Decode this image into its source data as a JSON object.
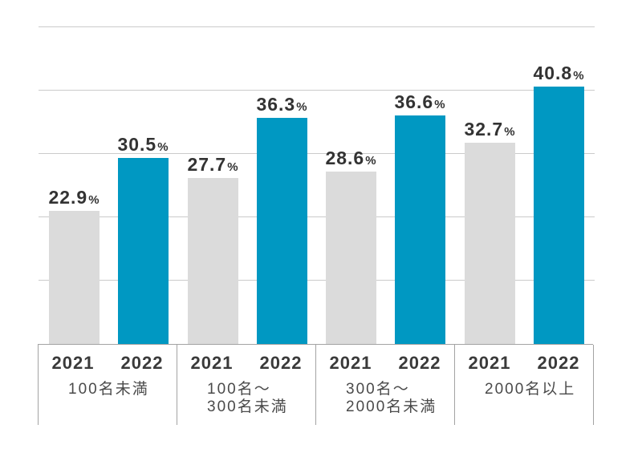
{
  "chart_data": {
    "type": "bar",
    "title": "",
    "categories": [
      "100名未満",
      "100名～300名未満",
      "300名～2000名未満",
      "2000名以上"
    ],
    "series": [
      {
        "name": "2021",
        "values": [
          22.9,
          27.7,
          28.6,
          32.7
        ],
        "color": "#dbdbdb"
      },
      {
        "name": "2022",
        "values": [
          30.5,
          36.3,
          36.6,
          40.8
        ],
        "color": "#0098c2"
      }
    ],
    "unit": "%",
    "value_labels_shown": true,
    "xlabel": "",
    "ylabel": "",
    "axis_tick_labels": "none",
    "grid": "horizontal",
    "legend_position": "none"
  },
  "percent_sign": "%",
  "groups": [
    {
      "category_line1": "100名未満",
      "category_line2": "",
      "bars": [
        {
          "year": "2021",
          "value": 22.9,
          "value_text": "22.9"
        },
        {
          "year": "2022",
          "value": 30.5,
          "value_text": "30.5"
        }
      ]
    },
    {
      "category_line1": "100名～",
      "category_line2": "300名未満",
      "bars": [
        {
          "year": "2021",
          "value": 27.7,
          "value_text": "27.7"
        },
        {
          "year": "2022",
          "value": 36.3,
          "value_text": "36.3"
        }
      ]
    },
    {
      "category_line1": "300名～",
      "category_line2": "2000名未満",
      "bars": [
        {
          "year": "2021",
          "value": 28.6,
          "value_text": "28.6"
        },
        {
          "year": "2022",
          "value": 36.6,
          "value_text": "36.6"
        }
      ]
    },
    {
      "category_line1": "2000名以上",
      "category_line2": "",
      "bars": [
        {
          "year": "2021",
          "value": 32.7,
          "value_text": "32.7"
        },
        {
          "year": "2022",
          "value": 40.8,
          "value_text": "40.8"
        }
      ]
    }
  ]
}
